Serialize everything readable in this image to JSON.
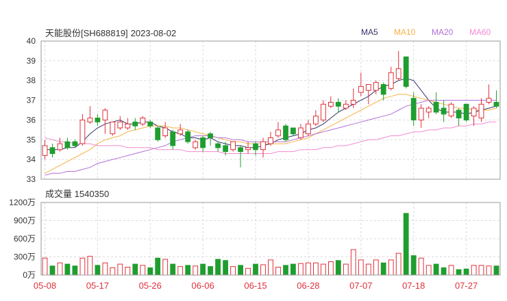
{
  "header": {
    "title": "天能股份[SH688819]",
    "date": "2023-08-02"
  },
  "legend": [
    {
      "label": "MA5",
      "color": "#333366"
    },
    {
      "label": "MA10",
      "color": "#f5b342"
    },
    {
      "label": "MA20",
      "color": "#b36fd6"
    },
    {
      "label": "MA60",
      "color": "#f08ad0"
    }
  ],
  "volume_panel": {
    "label_prefix": "成交量",
    "label_value": "1540350"
  },
  "colors": {
    "up": "#e02f3a",
    "down": "#1f9e2f",
    "grid": "#d9d9d9",
    "frame": "#9a9a9a",
    "axis_text": "#333333",
    "date_text": "#e02f3a"
  },
  "chart_data": [
    {
      "type": "candlestick",
      "ylim": [
        33,
        40
      ],
      "yticks": [
        "33",
        "34",
        "35",
        "36",
        "37",
        "38",
        "39",
        "40"
      ],
      "grid": true,
      "dates": [
        "05-08",
        "05-09",
        "05-10",
        "05-11",
        "05-12",
        "05-15",
        "05-16",
        "05-17",
        "05-18",
        "05-19",
        "05-22",
        "05-23",
        "05-24",
        "05-25",
        "05-26",
        "05-29",
        "05-30",
        "05-31",
        "06-01",
        "06-02",
        "06-05",
        "06-06",
        "06-07",
        "06-08",
        "06-09",
        "06-12",
        "06-13",
        "06-14",
        "06-15",
        "06-16",
        "06-19",
        "06-20",
        "06-21",
        "06-26",
        "06-27",
        "06-28",
        "06-29",
        "06-30",
        "07-03",
        "07-04",
        "07-05",
        "07-06",
        "07-07",
        "07-10",
        "07-11",
        "07-12",
        "07-13",
        "07-14",
        "07-17",
        "07-18",
        "07-19",
        "07-20",
        "07-21",
        "07-24",
        "07-25",
        "07-26",
        "07-27",
        "07-28",
        "07-31",
        "08-01",
        "08-02"
      ],
      "xticks": [
        "05-08",
        "05-17",
        "05-26",
        "06-06",
        "06-15",
        "06-28",
        "07-07",
        "07-18",
        "07-27"
      ],
      "open": [
        34.2,
        34.6,
        34.5,
        34.9,
        34.9,
        34.8,
        35.9,
        36.1,
        36.0,
        35.3,
        35.6,
        35.6,
        35.9,
        35.8,
        35.9,
        35.6,
        35.2,
        35.4,
        35.3,
        35.4,
        34.6,
        35.1,
        35.3,
        34.8,
        34.7,
        34.5,
        34.6,
        34.5,
        34.8,
        34.5,
        34.8,
        35.2,
        35.7,
        35.6,
        35.1,
        35.3,
        35.8,
        36.0,
        36.7,
        36.9,
        36.6,
        36.8,
        37.4,
        37.5,
        37.5,
        37.8,
        37.6,
        38.1,
        39.2,
        37.1,
        36.0,
        36.4,
        36.9,
        36.6,
        36.2,
        36.5,
        36.8,
        36.2,
        36.1,
        36.9,
        36.9
      ],
      "close": [
        34.7,
        34.3,
        34.8,
        34.6,
        34.7,
        36.0,
        36.1,
        35.9,
        36.5,
        35.9,
        35.9,
        35.8,
        35.7,
        36.1,
        35.7,
        35.0,
        35.6,
        34.7,
        35.5,
        34.9,
        34.9,
        34.6,
        35.1,
        34.6,
        34.4,
        34.9,
        34.4,
        34.6,
        34.5,
        34.9,
        35.1,
        35.5,
        35.0,
        35.3,
        35.6,
        35.8,
        36.2,
        36.8,
        36.9,
        36.7,
        36.8,
        37.0,
        37.7,
        37.8,
        37.9,
        37.3,
        38.4,
        38.6,
        37.7,
        36.0,
        36.6,
        36.6,
        36.4,
        36.3,
        36.8,
        36.1,
        36.0,
        36.6,
        36.8,
        37.1,
        36.7
      ],
      "high": [
        35.0,
        34.8,
        35.1,
        35.1,
        35.0,
        36.3,
        36.7,
        36.3,
        36.6,
        35.9,
        36.2,
        36.1,
        36.1,
        36.2,
        36.0,
        35.7,
        35.9,
        35.5,
        35.8,
        35.5,
        35.0,
        35.2,
        35.4,
        34.9,
        34.9,
        34.9,
        34.7,
        34.9,
        34.9,
        35.1,
        35.4,
        35.9,
        35.8,
        35.6,
        35.8,
        36.0,
        36.5,
        37.0,
        37.2,
        37.1,
        37.0,
        37.6,
        38.4,
        37.8,
        38.0,
        37.9,
        38.7,
        39.5,
        39.2,
        37.4,
        36.8,
        36.7,
        37.4,
        37.0,
        36.9,
        36.6,
        36.8,
        36.7,
        37.1,
        37.8,
        37.5
      ],
      "low": [
        34.0,
        34.1,
        34.4,
        34.5,
        34.6,
        34.7,
        35.8,
        35.7,
        35.3,
        35.2,
        35.5,
        35.5,
        35.5,
        35.7,
        35.6,
        34.9,
        35.1,
        34.5,
        35.2,
        34.8,
        34.5,
        34.4,
        34.7,
        34.4,
        34.2,
        34.4,
        33.6,
        34.3,
        34.2,
        34.1,
        34.7,
        35.1,
        34.9,
        35.2,
        35.0,
        35.2,
        35.7,
        35.9,
        36.6,
        36.4,
        36.5,
        36.6,
        37.2,
        36.8,
        37.3,
        37.0,
        37.5,
        38.0,
        37.6,
        35.7,
        35.6,
        36.1,
        36.3,
        35.9,
        36.1,
        35.7,
        35.9,
        35.7,
        35.9,
        36.8,
        36.6
      ],
      "ma_series": [
        {
          "name": "MA5",
          "values": [
            34.5,
            34.5,
            34.5,
            34.6,
            34.6,
            34.9,
            35.3,
            35.6,
            35.8,
            35.9,
            36.0,
            35.8,
            35.8,
            35.9,
            35.9,
            35.7,
            35.6,
            35.4,
            35.3,
            35.1,
            35.1,
            35.0,
            35.1,
            34.9,
            34.8,
            34.7,
            34.7,
            34.6,
            34.6,
            34.7,
            34.8,
            35.0,
            35.1,
            35.2,
            35.3,
            35.5,
            35.6,
            35.8,
            36.1,
            36.4,
            36.6,
            36.8,
            37.0,
            37.2,
            37.5,
            37.7,
            37.8,
            38.0,
            38.1,
            38.0,
            37.5,
            37.0,
            36.6,
            36.4,
            36.4,
            36.4,
            36.3,
            36.4,
            36.5,
            36.6,
            36.7
          ]
        },
        {
          "name": "MA10",
          "values": [
            33.3,
            33.5,
            33.7,
            33.9,
            34.1,
            34.3,
            34.5,
            34.8,
            35.0,
            35.1,
            35.2,
            35.4,
            35.5,
            35.6,
            35.7,
            35.7,
            35.7,
            35.6,
            35.6,
            35.5,
            35.4,
            35.3,
            35.2,
            35.1,
            35.0,
            34.9,
            34.9,
            34.8,
            34.8,
            34.8,
            34.8,
            34.8,
            34.8,
            34.9,
            35.0,
            35.1,
            35.3,
            35.5,
            35.7,
            35.9,
            36.1,
            36.3,
            36.5,
            36.7,
            36.9,
            37.1,
            37.2,
            37.3,
            37.3,
            37.2,
            37.1,
            37.0,
            36.9,
            36.8,
            36.7,
            36.6,
            36.6,
            36.5,
            36.5,
            36.5,
            36.6
          ]
        },
        {
          "name": "MA20",
          "values": [
            33.2,
            33.3,
            33.3,
            33.4,
            33.4,
            33.5,
            33.6,
            33.8,
            33.9,
            34.0,
            34.1,
            34.2,
            34.3,
            34.4,
            34.5,
            34.6,
            34.7,
            34.9,
            35.0,
            35.1,
            35.2,
            35.2,
            35.2,
            35.1,
            35.1,
            35.0,
            35.0,
            34.9,
            34.9,
            34.9,
            34.9,
            34.9,
            34.9,
            35.0,
            35.1,
            35.2,
            35.3,
            35.4,
            35.5,
            35.6,
            35.7,
            35.8,
            35.9,
            36.0,
            36.1,
            36.2,
            36.3,
            36.5,
            36.7,
            36.8,
            36.9,
            37.0,
            37.0,
            37.0,
            37.0,
            37.0,
            37.0,
            37.0,
            37.0,
            37.0,
            37.0
          ]
        },
        {
          "name": "MA60",
          "values": [
            35.1,
            35.0,
            34.9,
            34.9,
            34.8,
            34.8,
            34.8,
            34.7,
            34.7,
            34.7,
            34.7,
            34.6,
            34.6,
            34.6,
            34.6,
            34.5,
            34.5,
            34.5,
            34.5,
            34.4,
            34.4,
            34.4,
            34.4,
            34.4,
            34.3,
            34.3,
            34.3,
            34.3,
            34.3,
            34.3,
            34.3,
            34.4,
            34.4,
            34.4,
            34.5,
            34.5,
            34.5,
            34.6,
            34.6,
            34.7,
            34.7,
            34.8,
            34.9,
            35.0,
            35.0,
            35.1,
            35.2,
            35.2,
            35.3,
            35.4,
            35.4,
            35.5,
            35.5,
            35.6,
            35.6,
            35.7,
            35.7,
            35.8,
            35.8,
            35.9,
            35.9
          ]
        }
      ]
    },
    {
      "type": "bar",
      "name": "成交量",
      "unit": "万",
      "ylim": [
        0,
        1200
      ],
      "yticks": [
        "0万",
        "300万",
        "600万",
        "900万",
        "1200万"
      ],
      "grid": true,
      "values": [
        280,
        150,
        200,
        180,
        150,
        280,
        310,
        160,
        200,
        120,
        180,
        130,
        180,
        160,
        120,
        280,
        260,
        180,
        140,
        160,
        150,
        180,
        140,
        260,
        240,
        140,
        160,
        110,
        180,
        170,
        250,
        130,
        160,
        180,
        190,
        200,
        200,
        180,
        220,
        240,
        180,
        420,
        250,
        180,
        250,
        200,
        250,
        360,
        1020,
        320,
        280,
        160,
        180,
        120,
        160,
        90,
        100,
        160,
        160,
        150,
        150
      ]
    }
  ]
}
